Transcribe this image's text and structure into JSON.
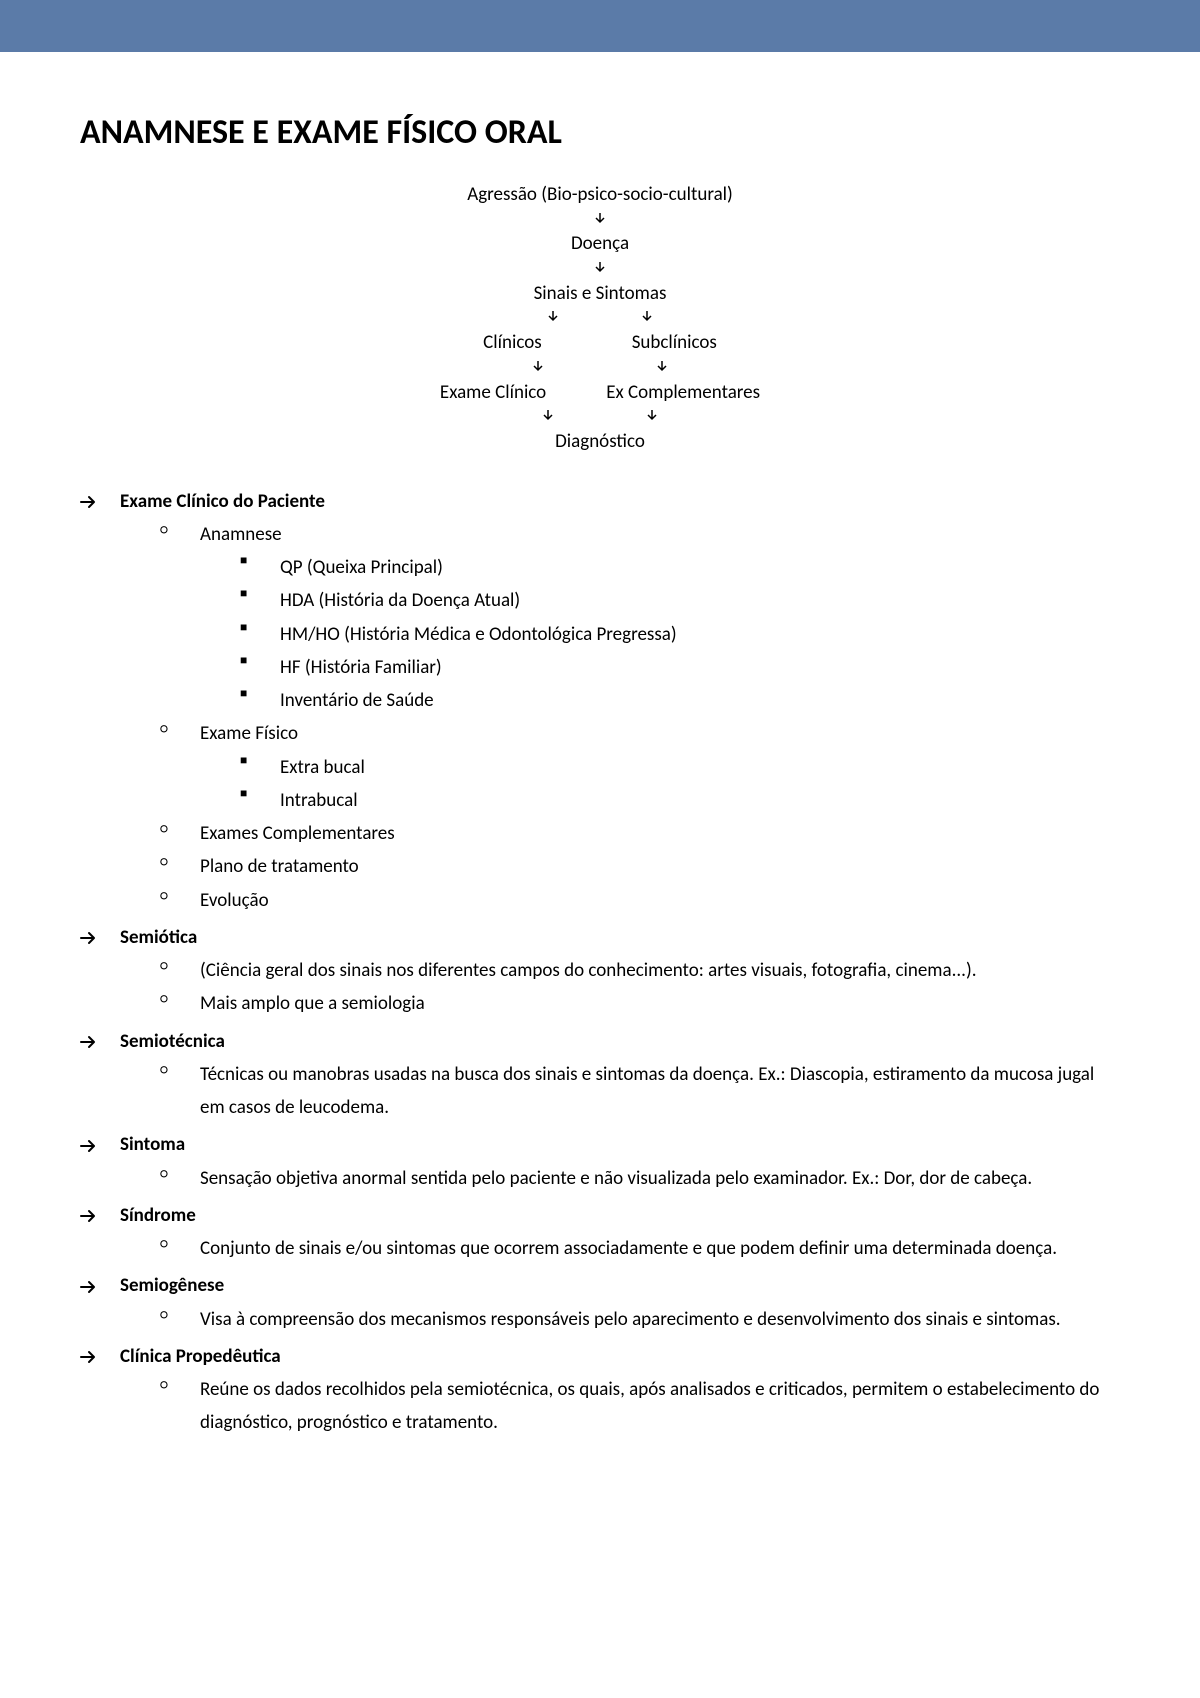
{
  "header": {
    "bg_color": "#5b7ba8"
  },
  "title": "ANAMNESE E EXAME FÍSICO ORAL",
  "flowchart": {
    "n1": "Agressão (Bio-psico-socio-cultural)",
    "arrow": "v",
    "n2": "Doença",
    "n3": "Sinais e Sintomas",
    "n4a": "Clínicos",
    "n4b": "Subclínicos",
    "n5a": "Exame Clínico",
    "n5b": "Ex Complementares",
    "n6": "Diagnóstico"
  },
  "sections": [
    {
      "label": "Exame Clínico do Paciente",
      "items": [
        {
          "label": "Anamnese",
          "sub": [
            "QP (Queixa Principal)",
            "HDA (História da Doença Atual)",
            "HM/HO (História Médica e Odontológica Pregressa)",
            "HF (História Familiar)",
            "Inventário de Saúde"
          ]
        },
        {
          "label": "Exame Físico",
          "sub": [
            "Extra bucal",
            "Intrabucal"
          ]
        },
        {
          "label": "Exames Complementares"
        },
        {
          "label": "Plano de tratamento"
        },
        {
          "label": "Evolução"
        }
      ]
    },
    {
      "label": "Semiótica",
      "items": [
        {
          "label": "  (Ciência geral dos sinais nos diferentes campos do conhecimento: artes visuais, fotografia, cinema...)."
        },
        {
          "label": "Mais amplo que a semiologia"
        }
      ]
    },
    {
      "label": "Semiotécnica",
      "items": [
        {
          "label": "Técnicas ou manobras usadas na busca dos sinais e sintomas da doença. Ex.: Diascopia, estiramento da mucosa jugal em casos de leucodema."
        }
      ]
    },
    {
      "label": "Sintoma",
      "items": [
        {
          "label": "Sensação objetiva anormal sentida pelo paciente e não visualizada pelo examinador. Ex.: Dor, dor de cabeça."
        }
      ]
    },
    {
      "label": "Síndrome",
      "items": [
        {
          "label": "Conjunto de sinais e/ou sintomas que ocorrem associadamente e que podem definir uma determinada doença."
        }
      ]
    },
    {
      "label": "Semiogênese",
      "items": [
        {
          "label": "Visa à compreensão dos mecanismos responsáveis pelo aparecimento e desenvolvimento dos sinais e sintomas."
        }
      ]
    },
    {
      "label": "Clínica Propedêutica",
      "items": [
        {
          "label": "Reúne os dados recolhidos pela semiotécnica, os quais, após analisados e criticados, permitem o estabelecimento do diagnóstico, prognóstico e tratamento."
        }
      ]
    }
  ]
}
